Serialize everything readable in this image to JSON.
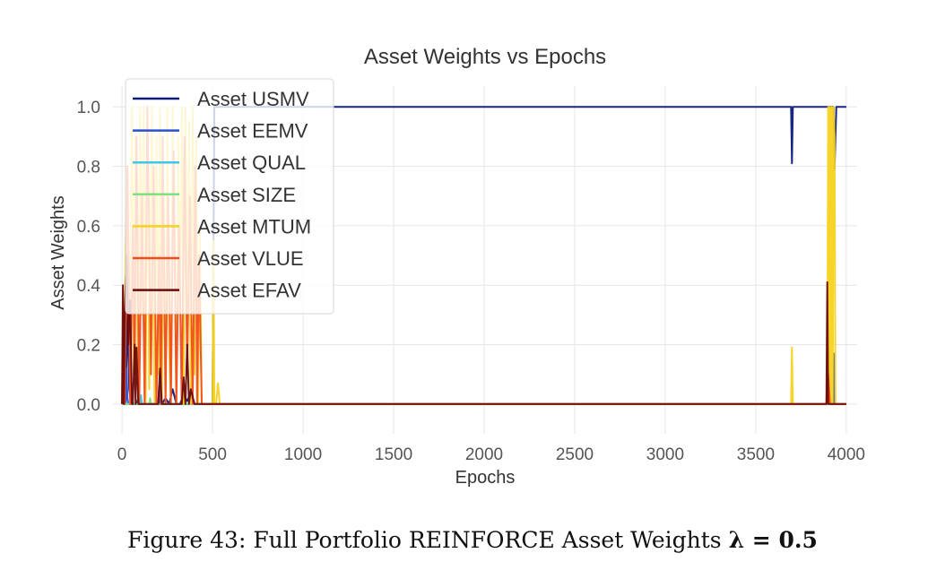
{
  "caption": {
    "text": "Figure 43: Full Portfolio REINFORCE Asset Weights",
    "symbol": "λ = 0.5"
  },
  "chart_data": {
    "type": "line",
    "title": "Asset Weights vs Epochs",
    "xlabel": "Epochs",
    "ylabel": "Asset Weights",
    "xlim": [
      -50,
      4060
    ],
    "ylim": [
      -0.1,
      1.07
    ],
    "xticks": [
      0,
      500,
      1000,
      1500,
      2000,
      2500,
      3000,
      3500,
      4000
    ],
    "yticks": [
      0.0,
      0.2,
      0.4,
      0.6,
      0.8,
      1.0
    ],
    "ytick_labels": [
      "0.0",
      "0.2",
      "0.4",
      "0.6",
      "0.8",
      "1.0"
    ],
    "grid": true,
    "legend_position": "upper-left",
    "series": [
      {
        "name": "Asset USMV",
        "color": "#0c1a7a",
        "x": [
          0,
          5,
          10,
          20,
          30,
          40,
          50,
          60,
          70,
          80,
          90,
          100,
          120,
          140,
          160,
          180,
          200,
          220,
          240,
          260,
          280,
          300,
          320,
          340,
          360,
          380,
          400,
          420,
          440,
          460,
          480,
          500,
          510,
          520,
          600,
          1000,
          2000,
          3000,
          3690,
          3695,
          3700,
          3705,
          3710,
          3900,
          3905,
          3910,
          3915,
          3920,
          3925,
          3930,
          3935,
          3940,
          3945,
          3950,
          3960,
          4000
        ],
        "y": [
          0.0,
          0.02,
          0.0,
          0.0,
          0.3,
          0.05,
          0.0,
          0.0,
          0.0,
          0.0,
          0.02,
          0.0,
          0.0,
          0.0,
          0.0,
          0.0,
          0.0,
          0.0,
          0.02,
          0.0,
          0.05,
          0.0,
          0.0,
          0.03,
          0.01,
          0.04,
          0.0,
          0.0,
          0.0,
          0.0,
          0.0,
          0.0,
          1.0,
          1.0,
          1.0,
          1.0,
          1.0,
          1.0,
          1.0,
          1.0,
          0.81,
          1.0,
          1.0,
          1.0,
          1.0,
          1.0,
          1.0,
          1.0,
          1.0,
          1.0,
          0.79,
          0.9,
          1.0,
          1.0,
          1.0,
          1.0
        ]
      },
      {
        "name": "Asset EEMV",
        "color": "#2b4fd6",
        "x": [
          0,
          20,
          25,
          30,
          35,
          40,
          60,
          200,
          205,
          210,
          400,
          1000,
          2000,
          3000,
          3930,
          3933,
          3936,
          3940,
          4000
        ],
        "y": [
          0.0,
          0.0,
          0.12,
          0.02,
          0.0,
          0.0,
          0.0,
          0.0,
          0.06,
          0.0,
          0.0,
          0.0,
          0.0,
          0.0,
          0.0,
          0.17,
          0.0,
          0.0,
          0.0
        ]
      },
      {
        "name": "Asset QUAL",
        "color": "#3ec6e8",
        "x": [
          0,
          100,
          105,
          110,
          300,
          1000,
          2000,
          3000,
          4000
        ],
        "y": [
          0.0,
          0.0,
          0.03,
          0.0,
          0.0,
          0.0,
          0.0,
          0.0,
          0.0
        ]
      },
      {
        "name": "Asset SIZE",
        "color": "#7fe07f",
        "x": [
          0,
          150,
          155,
          160,
          1000,
          2000,
          3000,
          4000
        ],
        "y": [
          0.0,
          0.0,
          0.02,
          0.0,
          0.0,
          0.0,
          0.0,
          0.0
        ]
      },
      {
        "name": "Asset MTUM",
        "color": "#f5d21f",
        "x": [
          0,
          5,
          10,
          25,
          40,
          55,
          65,
          75,
          90,
          100,
          110,
          120,
          130,
          140,
          150,
          165,
          180,
          190,
          200,
          210,
          220,
          230,
          240,
          250,
          260,
          270,
          280,
          300,
          310,
          320,
          330,
          340,
          350,
          360,
          370,
          380,
          390,
          400,
          410,
          420,
          430,
          440,
          450,
          460,
          470,
          480,
          490,
          500,
          505,
          510,
          515,
          520,
          530,
          540,
          550,
          600,
          1000,
          2000,
          3000,
          3695,
          3700,
          3705,
          3890,
          3895,
          3900,
          3905,
          3910,
          3915,
          3920,
          3925,
          3930,
          3935,
          3940,
          3945,
          3950,
          4000
        ],
        "y": [
          0.0,
          0.35,
          0.0,
          0.8,
          0.2,
          1.0,
          0.1,
          0.9,
          0.0,
          1.0,
          0.3,
          1.0,
          0.0,
          0.95,
          0.05,
          1.0,
          0.0,
          0.9,
          0.1,
          1.0,
          0.0,
          0.7,
          0.0,
          1.0,
          0.2,
          0.0,
          1.0,
          0.0,
          0.9,
          0.3,
          1.0,
          0.0,
          1.0,
          0.2,
          0.95,
          0.0,
          1.0,
          0.1,
          0.9,
          0.0,
          0.6,
          0.0,
          0.0,
          0.0,
          0.0,
          0.0,
          0.0,
          0.0,
          0.55,
          0.0,
          0.0,
          0.0,
          0.07,
          0.0,
          0.0,
          0.0,
          0.0,
          0.0,
          0.0,
          0.0,
          0.19,
          0.0,
          0.0,
          0.0,
          1.0,
          0.0,
          1.0,
          0.0,
          1.0,
          0.0,
          1.0,
          0.9,
          0.0,
          0.0,
          0.0,
          0.0
        ]
      },
      {
        "name": "Asset VLUE",
        "color": "#f24d1f",
        "x": [
          0,
          8,
          15,
          30,
          45,
          60,
          70,
          80,
          95,
          110,
          125,
          140,
          160,
          175,
          190,
          205,
          215,
          225,
          240,
          255,
          270,
          285,
          300,
          315,
          330,
          345,
          360,
          375,
          390,
          405,
          415,
          425,
          440,
          460,
          500,
          1000,
          2000,
          3000,
          3890,
          3900,
          3910,
          3920,
          4000
        ],
        "y": [
          0.0,
          0.3,
          0.0,
          0.8,
          0.0,
          0.6,
          0.1,
          0.9,
          0.0,
          0.7,
          0.0,
          1.0,
          0.1,
          0.8,
          0.0,
          0.5,
          0.0,
          0.9,
          0.0,
          0.7,
          0.0,
          0.85,
          0.0,
          0.6,
          0.0,
          0.9,
          0.1,
          0.7,
          0.0,
          0.8,
          0.0,
          0.5,
          0.0,
          0.0,
          0.0,
          0.0,
          0.0,
          0.0,
          0.0,
          0.1,
          0.0,
          0.0,
          0.0
        ]
      },
      {
        "name": "Asset EFAV",
        "color": "#6b0a0a",
        "x": [
          0,
          5,
          10,
          15,
          25,
          35,
          45,
          55,
          60,
          70,
          75,
          80,
          90,
          100,
          120,
          200,
          210,
          220,
          230,
          300,
          330,
          340,
          350,
          360,
          370,
          380,
          400,
          1000,
          2000,
          3000,
          3890,
          3895,
          3900,
          3905,
          3910,
          4000
        ],
        "y": [
          0.0,
          0.4,
          0.0,
          0.3,
          0.5,
          0.2,
          0.35,
          0.0,
          0.0,
          0.2,
          0.0,
          0.19,
          0.0,
          0.0,
          0.0,
          0.0,
          0.12,
          0.0,
          0.0,
          0.0,
          0.0,
          0.09,
          0.0,
          0.2,
          0.0,
          0.05,
          0.0,
          0.0,
          0.0,
          0.0,
          0.0,
          0.41,
          0.0,
          0.0,
          0.0,
          0.0
        ]
      }
    ]
  }
}
